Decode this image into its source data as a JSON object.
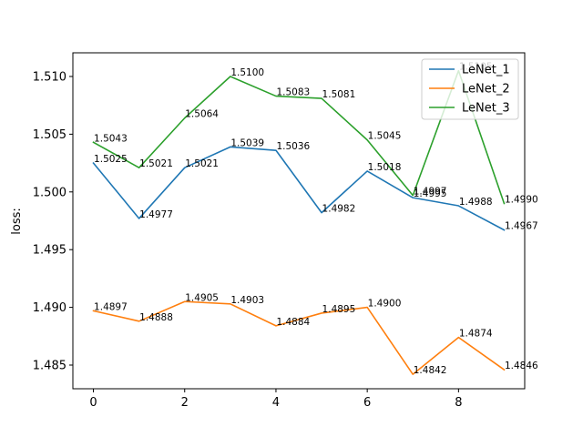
{
  "chart_data": {
    "type": "line",
    "title": "",
    "xlabel": "",
    "ylabel": "loss:",
    "x": [
      0,
      1,
      2,
      3,
      4,
      5,
      6,
      7,
      8,
      9
    ],
    "xticks": [
      0,
      2,
      4,
      6,
      8
    ],
    "yticks": [
      1.485,
      1.49,
      1.495,
      1.5,
      1.505,
      1.51
    ],
    "ytick_labels": [
      "1.485",
      "1.490",
      "1.495",
      "1.500",
      "1.505",
      "1.510"
    ],
    "xlim": [
      -0.45,
      9.45
    ],
    "ylim": [
      1.48295,
      1.51205
    ],
    "grid": false,
    "legend_position": "top-right",
    "series": [
      {
        "name": "LeNet_1",
        "color": "#1f77b4",
        "values": [
          1.5025,
          1.4977,
          1.5021,
          1.5039,
          1.5036,
          1.4982,
          1.5018,
          1.4995,
          1.4988,
          1.4967
        ],
        "labels": [
          "1.5025",
          "1.4977",
          "1.5021",
          "1.5039",
          "1.5036",
          "1.4982",
          "1.5018",
          "1.4995",
          "1.4988",
          "1.4967"
        ]
      },
      {
        "name": "LeNet_2",
        "color": "#ff7f0e",
        "values": [
          1.4897,
          1.4888,
          1.4905,
          1.4903,
          1.4884,
          1.4895,
          1.49,
          1.4842,
          1.4874,
          1.4846
        ],
        "labels": [
          "1.4897",
          "1.4888",
          "1.4905",
          "1.4903",
          "1.4884",
          "1.4895",
          "1.4900",
          "1.4842",
          "1.4874",
          "1.4846"
        ]
      },
      {
        "name": "LeNet_3",
        "color": "#2ca02c",
        "values": [
          1.5043,
          1.5021,
          1.5064,
          1.51,
          1.5083,
          1.5081,
          1.5045,
          1.4997,
          1.5105,
          1.499
        ],
        "labels": [
          "1.5043",
          "1.5021",
          "1.5064",
          "1.5100",
          "1.5083",
          "1.5081",
          "1.5045",
          "1.4997",
          "1.5105",
          "1.4990"
        ]
      }
    ]
  }
}
